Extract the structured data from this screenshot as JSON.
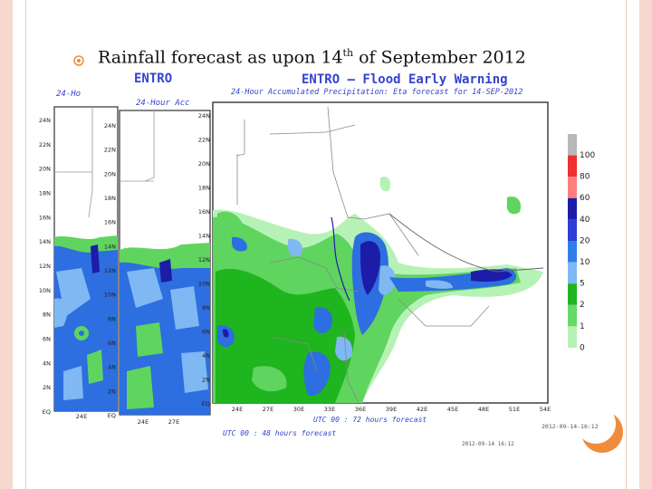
{
  "slide": {
    "title_prefix": "Rainfall forecast as upon 14",
    "title_sup": "th",
    "title_suffix": " of September 2012"
  },
  "maps": {
    "header_main": "ENTRO – Flood Early Warning",
    "header_back1": "ENTRO",
    "subtitle_front": "24-Hour Accumulated Precipitation: Eta forecast for 14-SEP-2012",
    "subtitle_back1": "24-Hour Acc",
    "subtitle_back2": "24-Ho",
    "footer_front": "UTC 00 : 72 hours forecast",
    "footer_back": "UTC 00 : 48 hours forecast",
    "date_stamp_front": "2012-09-14-16:12",
    "date_stamp_back": "2012-09-14 16:12",
    "lat_ticks_front": [
      "24N",
      "22N",
      "20N",
      "18N",
      "16N",
      "14N",
      "12N",
      "10N",
      "8N",
      "6N",
      "4N",
      "2N",
      "EQ"
    ],
    "lat_ticks_back1": [
      "24N",
      "22N",
      "20N",
      "18N",
      "16N",
      "14N",
      "12N",
      "10N",
      "8N",
      "6N",
      "4N",
      "2N",
      "EQ"
    ],
    "lat_ticks_back2": [
      "24N",
      "22N",
      "20N",
      "18N",
      "16N",
      "14N",
      "12N",
      "10N",
      "8N",
      "6N",
      "4N",
      "2N",
      "EQ"
    ],
    "lon_ticks_front": [
      "24E",
      "27E",
      "30E",
      "33E",
      "36E",
      "39E",
      "42E",
      "45E",
      "48E",
      "51E",
      "54E"
    ],
    "lon_ticks_back1": [
      "24E",
      "27E"
    ],
    "lon_ticks_back2": [
      "24E"
    ]
  },
  "legend": {
    "labels": [
      "100",
      "80",
      "60",
      "40",
      "20",
      "10",
      "5",
      "2",
      "1",
      "0"
    ],
    "colors": [
      "#b8b8b8",
      "#ee3030",
      "#ff7f7f",
      "#1c1ca8",
      "#2d3ed6",
      "#2e7ee8",
      "#7fb8f2",
      "#1fb51f",
      "#66d966",
      "#b6f2b6"
    ]
  },
  "colors": {
    "land": "#ffffff",
    "light_green": "#b6f2b6",
    "green": "#5fd45f",
    "dark_green": "#1fb51f",
    "blue": "#2d6ee0",
    "dark_blue": "#1c1ca8",
    "light_blue": "#7fb8f2",
    "header_text": "#3344cc",
    "accent": "#ef8c3b"
  }
}
